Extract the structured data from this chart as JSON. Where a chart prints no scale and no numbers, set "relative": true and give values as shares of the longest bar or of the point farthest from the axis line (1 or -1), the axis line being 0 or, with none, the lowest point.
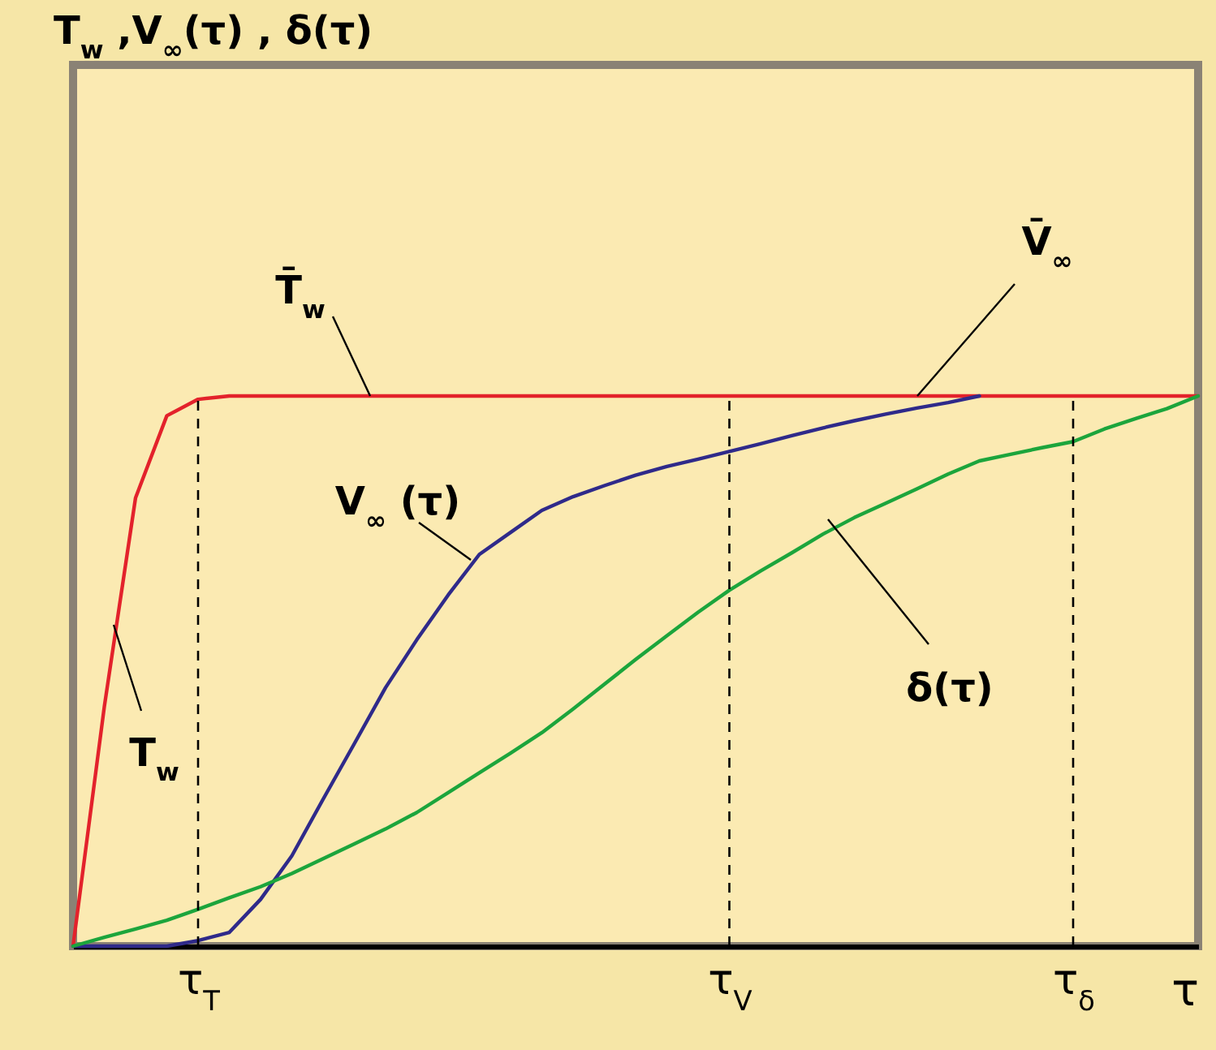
{
  "chart_data": {
    "type": "line",
    "relative": true,
    "xlabel": "τ",
    "categories": [
      null,
      null,
      null,
      null,
      "τ$_{T}$",
      null,
      null,
      null,
      null,
      null,
      null,
      null,
      null,
      null,
      null,
      null,
      null,
      null,
      null,
      null,
      null,
      "τ$_{V}$",
      null,
      null,
      null,
      null,
      null,
      null,
      null,
      null,
      null,
      null,
      "τ$_{δ}$",
      null,
      null,
      null,
      null
    ],
    "series": [
      {
        "color": "#e3222b",
        "values": [
          0,
          0.435,
          0.815,
          0.964,
          0.994,
          1,
          1,
          1,
          1,
          1,
          1,
          1,
          1,
          1,
          1,
          1,
          1,
          1,
          1,
          1,
          1,
          1,
          1,
          1,
          1,
          1,
          1,
          1,
          1,
          1,
          1,
          1,
          1,
          1,
          1,
          1,
          1
        ]
      },
      {
        "color": "#2f2a8a",
        "values": [
          0,
          0,
          0,
          0,
          0.01,
          0.025,
          0.085,
          0.164,
          0.267,
          0.368,
          0.47,
          0.557,
          0.638,
          0.712,
          0.752,
          0.792,
          0.817,
          0.837,
          0.856,
          0.872,
          0.885,
          0.899,
          0.913,
          0.928,
          0.942,
          0.955,
          0.967,
          0.978,
          0.988,
          1,
          null,
          null,
          null,
          null,
          null,
          null,
          null
        ]
      },
      {
        "color": "#1ca53c",
        "values": [
          0,
          0.016,
          0.031,
          0.047,
          0.067,
          0.088,
          0.108,
          0.132,
          0.159,
          0.186,
          0.213,
          0.243,
          0.279,
          0.315,
          0.351,
          0.388,
          0.431,
          0.476,
          0.521,
          0.564,
          0.607,
          0.647,
          0.682,
          0.715,
          0.749,
          0.779,
          0.805,
          0.831,
          0.858,
          0.882,
          0.894,
          0.906,
          0.917,
          0.94,
          0.959,
          0.977,
          1
        ]
      }
    ],
    "ref_lines": [
      {
        "axis": "x",
        "value": "τ$_{T}$",
        "line_style": "dashed"
      },
      {
        "axis": "x",
        "value": "τ$_{V}$",
        "line_style": "dashed"
      },
      {
        "axis": "x",
        "value": "τ$_{δ}$",
        "line_style": "dashed"
      }
    ],
    "annotations": [
      "T$_{w}$ ,V$_{∞}$(τ) , δ(τ)",
      "T̄$_{w}$",
      "V̄$_{∞}$",
      "V$_{∞}$ (τ)",
      "δ(τ)",
      "T$_{w}$"
    ],
    "grid": false,
    "marker": "none",
    "line_style": "solid"
  }
}
